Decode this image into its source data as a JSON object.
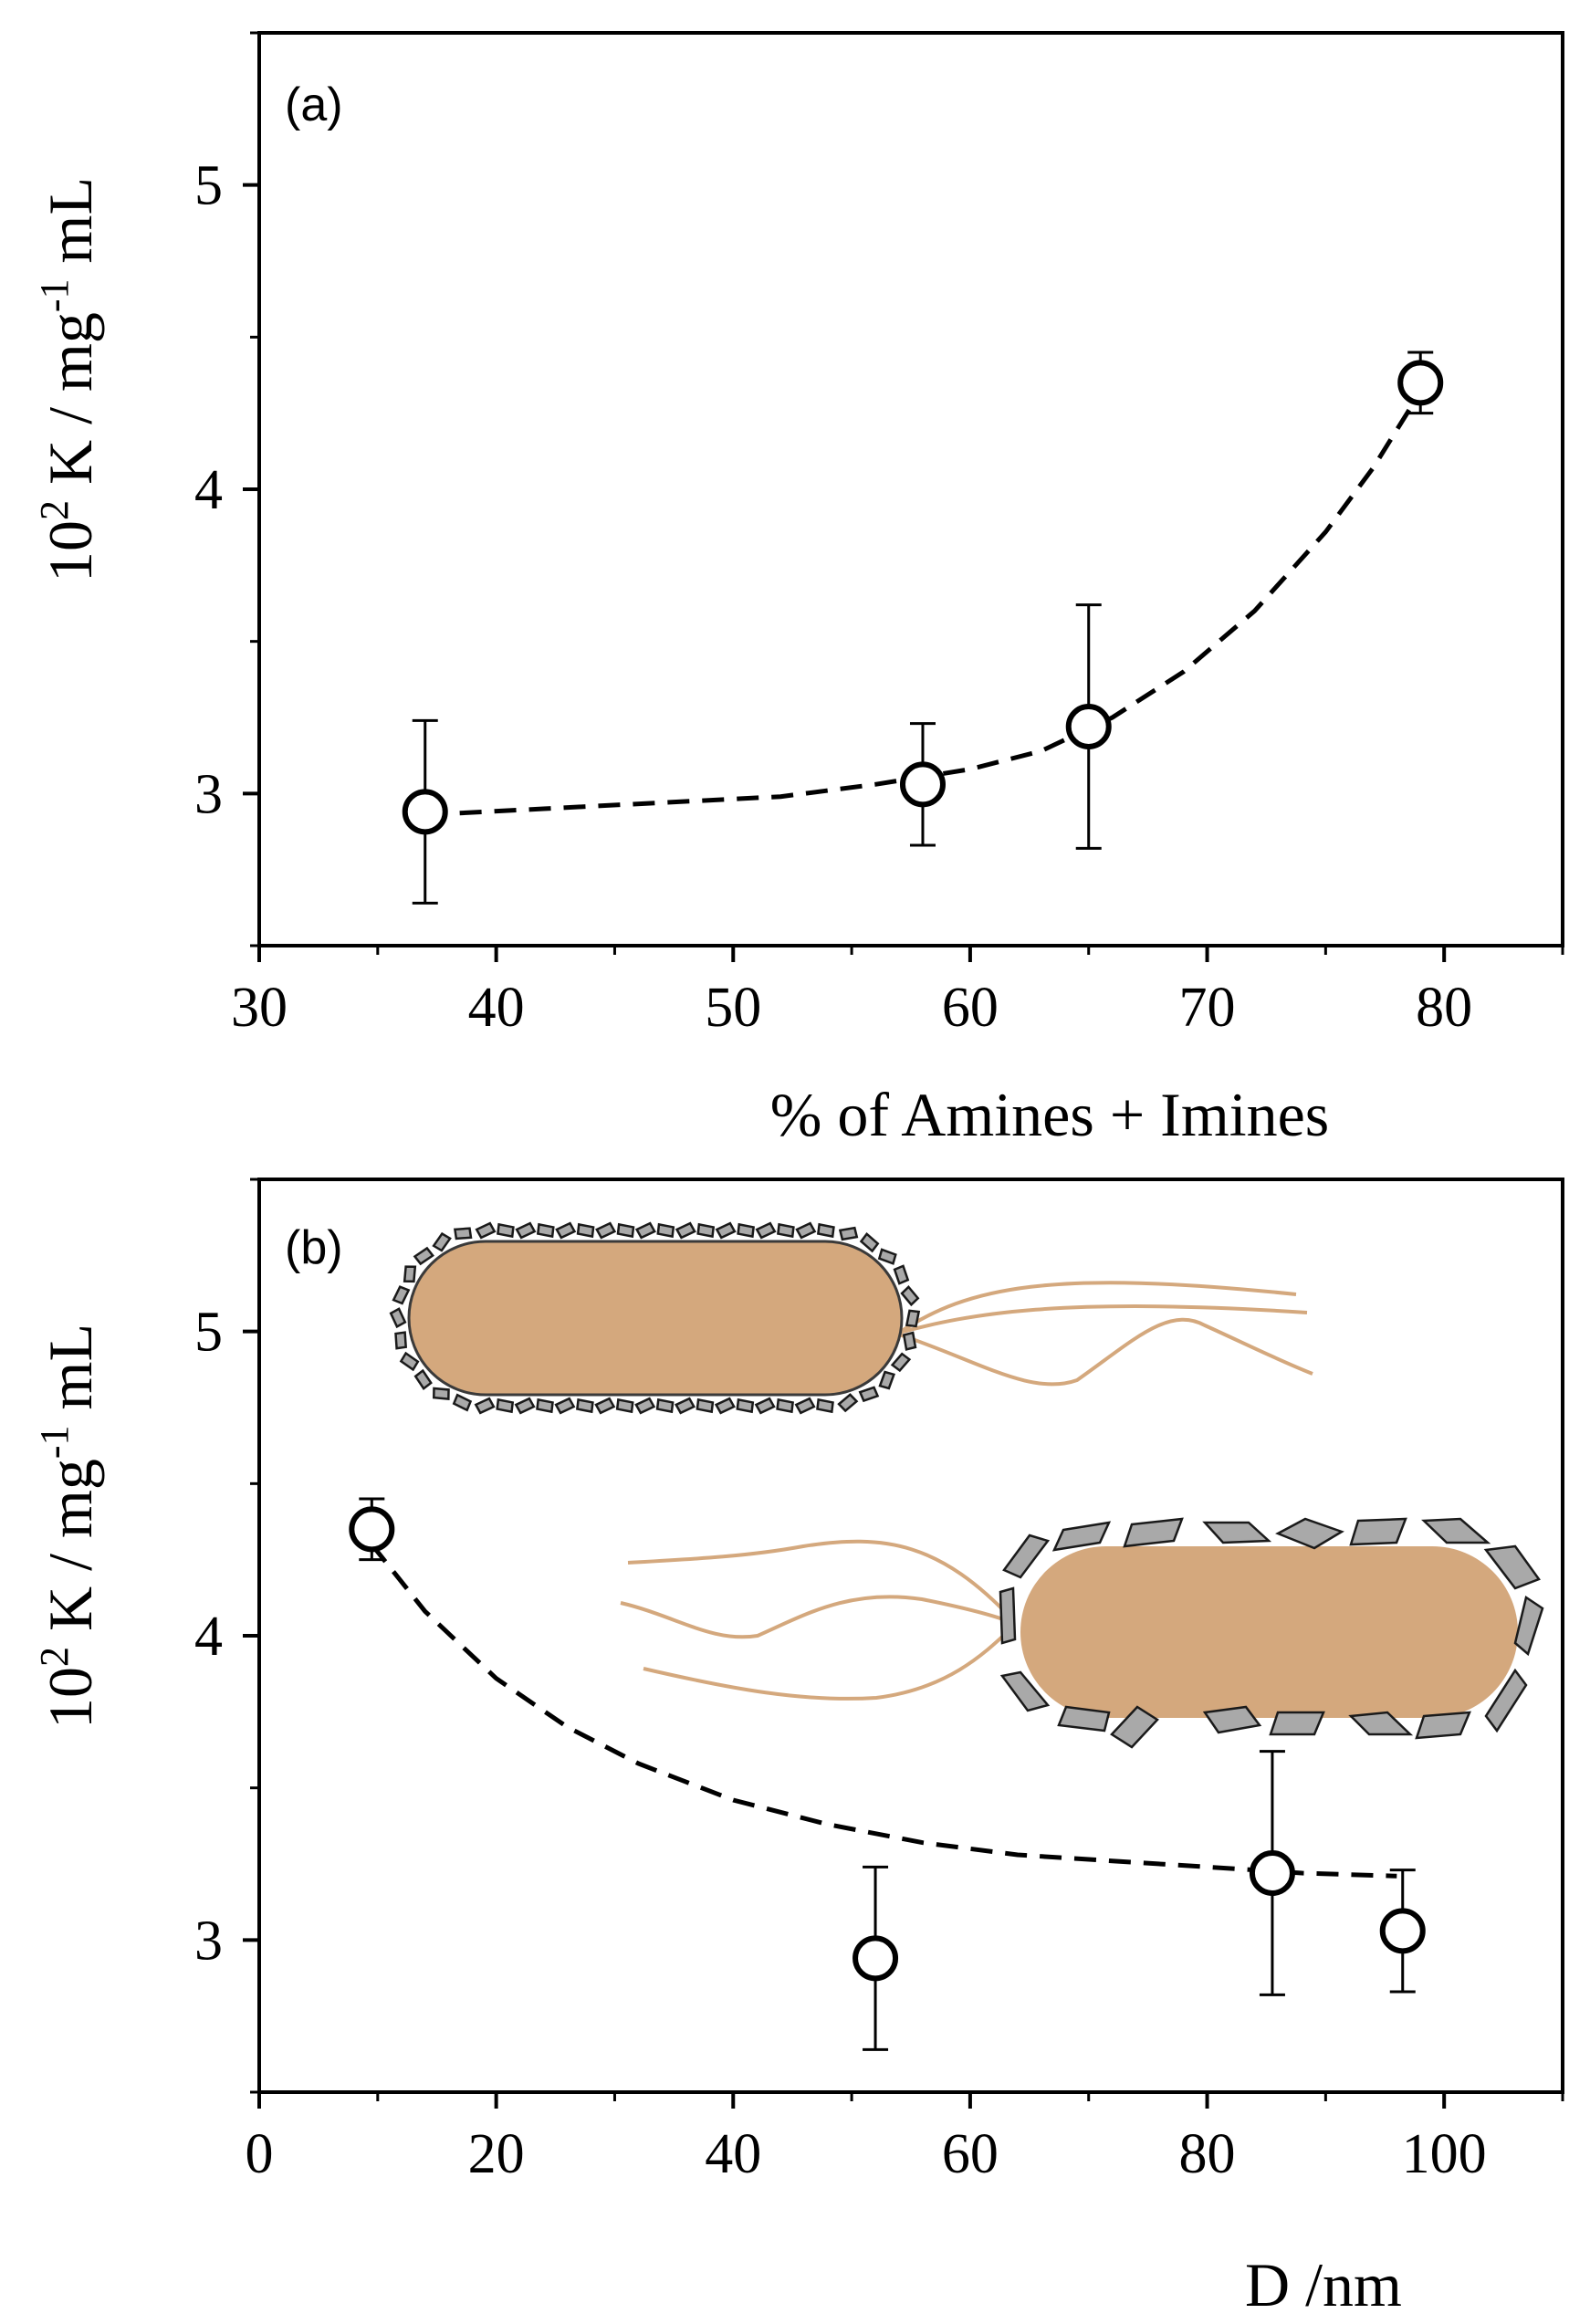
{
  "chart_data": [
    {
      "panel_label": "(a)",
      "type": "scatter",
      "xlabel": "% of Amines + Imines",
      "ylabel": "10² K / mg⁻¹ mL",
      "xlim": [
        30,
        85
      ],
      "ylim": [
        2.5,
        5.5
      ],
      "x_ticks": [
        30,
        40,
        50,
        60,
        70,
        80
      ],
      "y_ticks": [
        3,
        4,
        5
      ],
      "x_minor_step": 5,
      "y_minor_step": 0.5,
      "grid": false,
      "series": [
        {
          "points": [
            {
              "x": 37,
              "y": 2.94,
              "err": 0.3
            },
            {
              "x": 58,
              "y": 3.03,
              "err": 0.2
            },
            {
              "x": 65,
              "y": 3.22,
              "err": 0.4
            },
            {
              "x": 79,
              "y": 4.35,
              "err": 0.1
            }
          ]
        }
      ],
      "fit_curve": {
        "style": "dashed",
        "points": [
          [
            37,
            2.93
          ],
          [
            42,
            2.95
          ],
          [
            47,
            2.97
          ],
          [
            52,
            2.99
          ],
          [
            56,
            3.03
          ],
          [
            60,
            3.08
          ],
          [
            63,
            3.14
          ],
          [
            66,
            3.25
          ],
          [
            69,
            3.4
          ],
          [
            72,
            3.6
          ],
          [
            75,
            3.86
          ],
          [
            77,
            4.07
          ],
          [
            79,
            4.32
          ]
        ]
      }
    },
    {
      "panel_label": "(b)",
      "type": "scatter",
      "xlabel": "D /nm",
      "ylabel": "10² K / mg⁻¹ mL",
      "xlim": [
        0,
        110
      ],
      "ylim": [
        2.5,
        5.5
      ],
      "x_ticks": [
        0,
        20,
        40,
        60,
        80,
        100
      ],
      "y_ticks": [
        3,
        4,
        5
      ],
      "x_minor_step": 10,
      "y_minor_step": 0.5,
      "grid": false,
      "series": [
        {
          "points": [
            {
              "x": 9.5,
              "y": 4.35,
              "err": 0.1
            },
            {
              "x": 52,
              "y": 2.94,
              "err": 0.3
            },
            {
              "x": 85.5,
              "y": 3.22,
              "err": 0.4
            },
            {
              "x": 96.5,
              "y": 3.03,
              "err": 0.2
            }
          ]
        }
      ],
      "fit_curve": {
        "style": "dashed",
        "points": [
          [
            9.5,
            4.3
          ],
          [
            14,
            4.08
          ],
          [
            20,
            3.86
          ],
          [
            26,
            3.7
          ],
          [
            32,
            3.58
          ],
          [
            40,
            3.46
          ],
          [
            48,
            3.38
          ],
          [
            56,
            3.32
          ],
          [
            64,
            3.28
          ],
          [
            72,
            3.26
          ],
          [
            80,
            3.24
          ],
          [
            88,
            3.22
          ],
          [
            96,
            3.21
          ]
        ]
      },
      "illustrations": [
        {
          "name": "bacterium-small-particles-illustration",
          "body_color": "#D4A87D",
          "particle_color": "#A9A9A9",
          "flagella_color": "#D4A87D"
        },
        {
          "name": "bacterium-large-particles-illustration",
          "body_color": "#D4A87D",
          "particle_color": "#A9A9A9",
          "flagella_color": "#D4A87D"
        }
      ]
    }
  ]
}
